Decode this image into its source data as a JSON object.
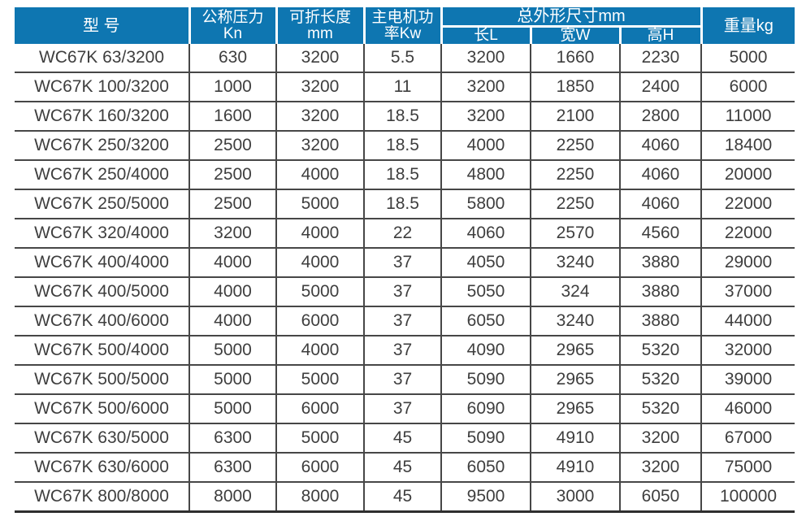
{
  "table": {
    "title_semantic": "WC67K press brake specification table",
    "header": {
      "model": "型 号",
      "pressure_line1": "公称压力",
      "pressure_line2": "Kn",
      "length_line1": "可折长度",
      "length_line2": "mm",
      "motor_line1": "主电机功",
      "motor_line2": "率Kw",
      "dimensions": "总外形尺寸mm",
      "dim_length": "长L",
      "dim_width": "宽W",
      "dim_height": "高H",
      "weight": "重量kg"
    },
    "column_keys": [
      "model",
      "pressure_kn",
      "length_mm",
      "motor_kw",
      "dim_l",
      "dim_w",
      "dim_h",
      "weight_kg"
    ],
    "rows": [
      [
        "WC67K 63/3200",
        "630",
        "3200",
        "5.5",
        "3200",
        "1660",
        "2230",
        "5000"
      ],
      [
        "WC67K 100/3200",
        "1000",
        "3200",
        "11",
        "3200",
        "1850",
        "2400",
        "6000"
      ],
      [
        "WC67K 160/3200",
        "1600",
        "3200",
        "18.5",
        "3200",
        "2100",
        "2800",
        "11000"
      ],
      [
        "WC67K 250/3200",
        "2500",
        "3200",
        "18.5",
        "4000",
        "2250",
        "4060",
        "18400"
      ],
      [
        "WC67K 250/4000",
        "2500",
        "4000",
        "18.5",
        "4800",
        "2250",
        "4060",
        "20000"
      ],
      [
        "WC67K 250/5000",
        "2500",
        "5000",
        "18.5",
        "5800",
        "2250",
        "4060",
        "22000"
      ],
      [
        "WC67K 320/4000",
        "3200",
        "4000",
        "22",
        "4060",
        "2570",
        "4560",
        "22000"
      ],
      [
        "WC67K 400/4000",
        "4000",
        "4000",
        "37",
        "4050",
        "3240",
        "3880",
        "29000"
      ],
      [
        "WC67K 400/5000",
        "4000",
        "5000",
        "37",
        "5050",
        "324",
        "3880",
        "37000"
      ],
      [
        "WC67K 400/6000",
        "4000",
        "6000",
        "37",
        "6050",
        "3240",
        "3880",
        "44000"
      ],
      [
        "WC67K 500/4000",
        "5000",
        "4000",
        "37",
        "4090",
        "2965",
        "5320",
        "32000"
      ],
      [
        "WC67K 500/5000",
        "5000",
        "5000",
        "37",
        "5090",
        "2965",
        "5320",
        "39000"
      ],
      [
        "WC67K 500/6000",
        "5000",
        "6000",
        "37",
        "6090",
        "2965",
        "5320",
        "46000"
      ],
      [
        "WC67K 630/5000",
        "6300",
        "5000",
        "45",
        "5090",
        "4910",
        "3200",
        "67000"
      ],
      [
        "WC67K 630/6000",
        "6300",
        "6000",
        "45",
        "6050",
        "4910",
        "3200",
        "75000"
      ],
      [
        "WC67K 800/8000",
        "8000",
        "8000",
        "45",
        "9500",
        "3000",
        "6050",
        "100000"
      ]
    ]
  },
  "colors": {
    "header_bg": "#0e76b1",
    "header_text": "#ffffff",
    "body_text": "#3e3e3e",
    "grid_line": "#474747",
    "bottom_line": "#2e2e2e"
  }
}
